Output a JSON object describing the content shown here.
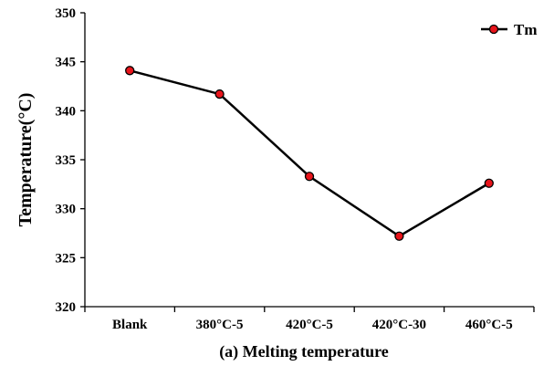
{
  "chart_data": {
    "type": "line",
    "categories": [
      "Blank",
      "380°C-5",
      "420°C-5",
      "420°C-30",
      "460°C-5"
    ],
    "series": [
      {
        "name": "Tm",
        "values": [
          344.1,
          341.7,
          333.3,
          327.2,
          332.6
        ]
      }
    ],
    "ylabel": "Temperature(°C)",
    "xlabel": "",
    "ylim": [
      320,
      350
    ],
    "yticks": [
      320,
      325,
      330,
      335,
      340,
      345,
      350
    ],
    "grid": false,
    "legend": "top-right",
    "caption": "(a) Melting temperature",
    "colors": {
      "line": "#000000",
      "marker": "#e8141b",
      "marker_edge": "#000000"
    }
  }
}
